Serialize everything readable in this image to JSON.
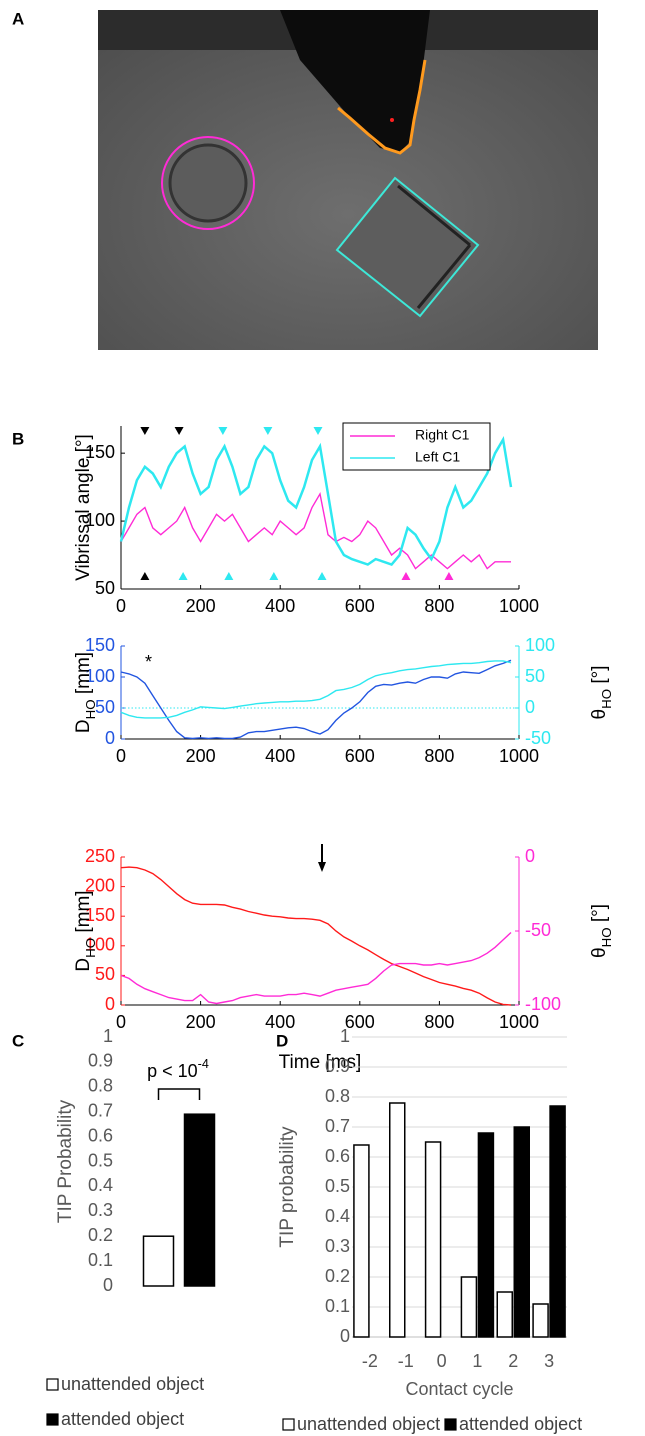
{
  "panels": [
    "A",
    "B",
    "C",
    "D"
  ],
  "chart_data": [
    {
      "type": "line",
      "ylabel": "Vibrissal angle [°]",
      "xlim": [
        0,
        1000
      ],
      "xticks": [
        0,
        200,
        400,
        600,
        800,
        1000
      ],
      "ylim": [
        50,
        170
      ],
      "yticks": [
        50,
        100,
        150
      ],
      "legend": "top-right",
      "x": [
        0,
        20,
        40,
        60,
        80,
        100,
        120,
        140,
        160,
        180,
        200,
        220,
        240,
        260,
        280,
        300,
        320,
        340,
        360,
        380,
        400,
        420,
        440,
        460,
        480,
        500,
        520,
        540,
        560,
        580,
        600,
        620,
        640,
        660,
        680,
        700,
        720,
        740,
        760,
        780,
        800,
        820,
        840,
        860,
        880,
        900,
        920,
        940,
        960,
        980
      ],
      "series": [
        {
          "name": "Right C1",
          "color": "#ff2bd6",
          "values": [
            85,
            95,
            105,
            110,
            95,
            90,
            95,
            100,
            110,
            95,
            85,
            95,
            105,
            100,
            105,
            95,
            85,
            90,
            95,
            90,
            100,
            95,
            90,
            95,
            110,
            120,
            90,
            85,
            88,
            85,
            90,
            100,
            95,
            85,
            75,
            80,
            75,
            65,
            70,
            75,
            70,
            65,
            70,
            75,
            70,
            75,
            65,
            70,
            70,
            70
          ]
        },
        {
          "name": "Left C1",
          "color": "#2ee8f0",
          "values": [
            85,
            110,
            130,
            140,
            135,
            125,
            140,
            150,
            155,
            135,
            120,
            125,
            145,
            155,
            140,
            120,
            125,
            145,
            155,
            150,
            130,
            115,
            110,
            125,
            145,
            155,
            120,
            85,
            75,
            72,
            70,
            68,
            72,
            70,
            68,
            75,
            95,
            90,
            80,
            72,
            85,
            110,
            125,
            110,
            115,
            125,
            135,
            150,
            160,
            125
          ]
        }
      ],
      "events": [
        {
          "color": "#000000",
          "side": "top",
          "x": [
            60,
            146
          ]
        },
        {
          "color": "#2ee8f0",
          "side": "top",
          "x": [
            256,
            369,
            495
          ]
        },
        {
          "color": "#000000",
          "side": "bottom",
          "x": [
            60
          ]
        },
        {
          "color": "#2ee8f0",
          "side": "bottom",
          "x": [
            156,
            271,
            384,
            505
          ]
        },
        {
          "color": "#ff2bd6",
          "side": "bottom",
          "x": [
            716,
            824
          ]
        }
      ]
    },
    {
      "type": "line",
      "ylabel": [
        "D",
        "HO",
        " [mm]"
      ],
      "y2label": [
        "θ",
        "HO",
        " [°]"
      ],
      "annotation": "*",
      "xlim": [
        0,
        1000
      ],
      "xticks": [
        0,
        200,
        400,
        600,
        800,
        1000
      ],
      "ylim": [
        0,
        150
      ],
      "yticks": [
        0,
        50,
        100,
        150
      ],
      "y_color": "#2255e0",
      "y2lim": [
        -50,
        100
      ],
      "y2ticks": [
        -50,
        0,
        50,
        100
      ],
      "y2_color": "#2ee8f0",
      "y2_reference": 0,
      "x": [
        0,
        20,
        40,
        60,
        80,
        100,
        120,
        140,
        160,
        180,
        200,
        220,
        240,
        260,
        280,
        300,
        320,
        340,
        360,
        380,
        400,
        420,
        440,
        460,
        480,
        500,
        520,
        540,
        560,
        580,
        600,
        620,
        640,
        660,
        680,
        700,
        720,
        740,
        760,
        780,
        800,
        820,
        840,
        860,
        880,
        900,
        920,
        940,
        960,
        980
      ],
      "series": [
        {
          "color": "#2255e0",
          "values": [
            108,
            105,
            100,
            90,
            70,
            50,
            30,
            12,
            2,
            1,
            2,
            1,
            2,
            1,
            1,
            3,
            10,
            12,
            12,
            14,
            16,
            18,
            19,
            17,
            12,
            8,
            15,
            30,
            42,
            50,
            60,
            75,
            85,
            88,
            87,
            90,
            92,
            90,
            96,
            100,
            100,
            98,
            105,
            108,
            107,
            106,
            112,
            118,
            122,
            127
          ]
        },
        {
          "color": "#2ee8f0",
          "axis": "y2",
          "values": [
            -7,
            -12,
            -15,
            -16,
            -16,
            -16,
            -15,
            -12,
            -7,
            -3,
            2,
            1,
            0,
            -1,
            1,
            3,
            5,
            7,
            8,
            9,
            10,
            10,
            11,
            11,
            12,
            14,
            20,
            28,
            30,
            33,
            38,
            46,
            52,
            55,
            57,
            60,
            62,
            63,
            65,
            67,
            68,
            70,
            71,
            72,
            72,
            73,
            75,
            76,
            76,
            73
          ]
        }
      ]
    },
    {
      "type": "line",
      "ylabel": [
        "D",
        "HO",
        " [mm]"
      ],
      "y2label": [
        "θ",
        "HO",
        " [°]"
      ],
      "xlabel": "Time [ms]",
      "xlim": [
        0,
        1000
      ],
      "xticks": [
        0,
        200,
        400,
        600,
        800,
        1000
      ],
      "ylim": [
        0,
        250
      ],
      "yticks": [
        0,
        50,
        100,
        150,
        200,
        250
      ],
      "y_color": "#ff1a1a",
      "y2lim": [
        -100,
        0
      ],
      "y2ticks": [
        -100,
        -50,
        0
      ],
      "y2_color": "#ff2bd6",
      "x": [
        0,
        20,
        40,
        60,
        80,
        100,
        120,
        140,
        160,
        180,
        200,
        220,
        240,
        260,
        280,
        300,
        320,
        340,
        360,
        380,
        400,
        420,
        440,
        460,
        480,
        500,
        520,
        540,
        560,
        580,
        600,
        620,
        640,
        660,
        680,
        700,
        720,
        740,
        760,
        780,
        800,
        820,
        840,
        860,
        880,
        900,
        920,
        940,
        960,
        980
      ],
      "series": [
        {
          "color": "#ff1a1a",
          "values": [
            232,
            233,
            232,
            228,
            222,
            212,
            200,
            188,
            178,
            172,
            170,
            170,
            170,
            169,
            165,
            162,
            158,
            155,
            152,
            150,
            149,
            147,
            146,
            146,
            145,
            143,
            137,
            125,
            115,
            108,
            100,
            93,
            85,
            77,
            70,
            65,
            60,
            54,
            48,
            43,
            38,
            35,
            32,
            28,
            25,
            20,
            12,
            5,
            1,
            0
          ]
        },
        {
          "color": "#ff2bd6",
          "axis": "y2",
          "values": [
            -80,
            -82,
            -86,
            -89,
            -91,
            -93,
            -95,
            -96,
            -97,
            -97,
            -93,
            -98,
            -99,
            -98,
            -97,
            -95,
            -94,
            -93,
            -94,
            -94,
            -94,
            -93,
            -93,
            -92,
            -93,
            -94,
            -92,
            -90,
            -89,
            -88,
            -87,
            -86,
            -82,
            -77,
            -73,
            -72,
            -72,
            -72,
            -73,
            -73,
            -72,
            -73,
            -72,
            -71,
            -70,
            -68,
            -65,
            -61,
            -56,
            -51
          ]
        }
      ]
    },
    {
      "type": "bar",
      "ylabel": "TIP Probability",
      "annotation": [
        "p < 10",
        "-4"
      ],
      "categories": [
        null
      ],
      "ylim": [
        0,
        1
      ],
      "yticks": [
        0,
        0.1,
        0.2,
        0.3,
        0.4,
        0.5,
        0.6,
        0.7,
        0.8,
        0.9,
        1
      ],
      "legend": "bottom",
      "series": [
        {
          "name": "unattended object",
          "color": "#ffffff",
          "values": [
            0.2
          ]
        },
        {
          "name": "attended object",
          "color": "#000000",
          "values": [
            0.69
          ]
        }
      ]
    },
    {
      "type": "bar",
      "ylabel": "TIP probability",
      "xlabel": "Contact cycle",
      "grid": true,
      "categories": [
        "-2",
        "-1",
        "0",
        "1",
        "2",
        "3"
      ],
      "ylim": [
        0,
        1
      ],
      "yticks": [
        0,
        0.1,
        0.2,
        0.3,
        0.4,
        0.5,
        0.6,
        0.7,
        0.8,
        0.9,
        1
      ],
      "legend": "bottom",
      "series": [
        {
          "name": "unattended object",
          "color": "#ffffff",
          "values": [
            0.64,
            0.78,
            0.65,
            0.2,
            0.15,
            0.11
          ]
        },
        {
          "name": "attended object",
          "color": "#000000",
          "values": [
            null,
            null,
            null,
            0.68,
            0.7,
            0.77
          ]
        }
      ]
    }
  ]
}
